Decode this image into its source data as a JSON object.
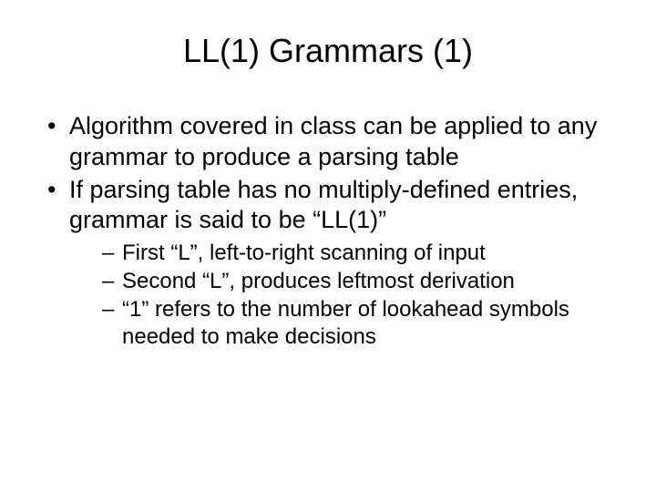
{
  "title": "LL(1) Grammars (1)",
  "bullets": [
    "Algorithm covered in class can be applied to any grammar to produce a parsing table",
    "If parsing table has no multiply-defined entries, grammar is said to be “LL(1)”"
  ],
  "sub_bullets": [
    "First “L”, left-to-right scanning of input",
    "Second “L”, produces leftmost derivation",
    "“1” refers to the number of lookahead symbols needed to make decisions"
  ],
  "background_color": "#ffffff",
  "text_color": "#000000",
  "title_fontsize": 36,
  "bullet_fontsize": 27,
  "sub_bullet_fontsize": 24,
  "font_family": "Arial"
}
